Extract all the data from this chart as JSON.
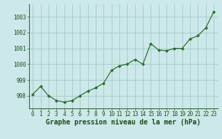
{
  "x": [
    0,
    1,
    2,
    3,
    4,
    5,
    6,
    7,
    8,
    9,
    10,
    11,
    12,
    13,
    14,
    15,
    16,
    17,
    18,
    19,
    20,
    21,
    22,
    23
  ],
  "y": [
    998.1,
    998.6,
    998.0,
    997.7,
    997.6,
    997.7,
    998.0,
    998.3,
    998.5,
    998.8,
    999.6,
    999.9,
    1000.0,
    1000.3,
    1000.0,
    1001.3,
    1000.9,
    1000.85,
    1001.0,
    1001.0,
    1001.6,
    1001.8,
    1002.3,
    1003.3
  ],
  "line_color": "#2d6a2d",
  "marker_color": "#2d6a2d",
  "bg_color": "#cce8e8",
  "grid_color": "#a0c8c8",
  "xlabel": "Graphe pression niveau de la mer (hPa)",
  "xlabel_color": "#1a4a1a",
  "tick_color": "#1a4a1a",
  "axis_color": "#2d6a2d",
  "ylim": [
    997.2,
    1003.8
  ],
  "yticks": [
    998,
    999,
    1000,
    1001,
    1002,
    1003
  ],
  "xticks": [
    0,
    1,
    2,
    3,
    4,
    5,
    6,
    7,
    8,
    9,
    10,
    11,
    12,
    13,
    14,
    15,
    16,
    17,
    18,
    19,
    20,
    21,
    22,
    23
  ],
  "tick_fontsize": 5.5,
  "xlabel_fontsize": 7.0
}
